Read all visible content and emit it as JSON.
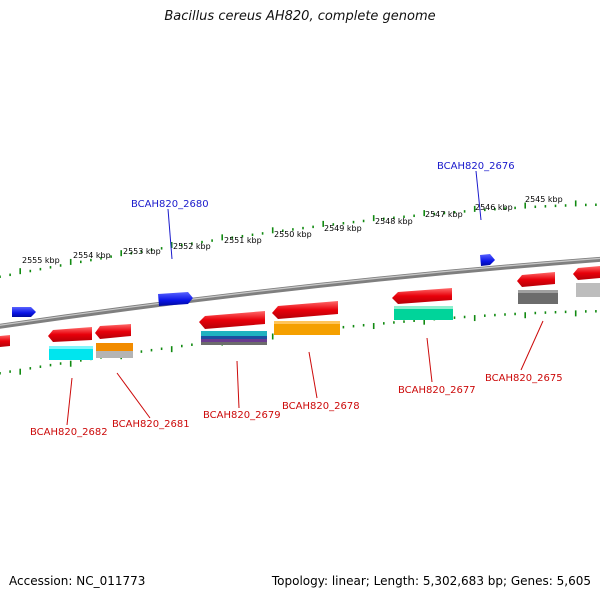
{
  "title": "Bacillus cereus AH820, complete genome",
  "footer": {
    "accession": "Accession: NC_011773",
    "summary": "Topology: linear; Length: 5,302,683 bp; Genes: 5,605"
  },
  "colors": {
    "backbone": "#7f7f7f",
    "tick": "#118a11",
    "forward_feature": "#0a14e6",
    "cds": "#e8000a",
    "label_top": "#1a1acc",
    "label_bottom": "#cc0a0a"
  },
  "scale_labels": [
    "2555 kbp",
    "2554 kbp",
    "2553 kbp",
    "2552 kbp",
    "2551 kbp",
    "2550 kbp",
    "2549 kbp",
    "2548 kbp",
    "2547 kbp",
    "2546 kbp",
    "2545 kbp"
  ],
  "gene_labels_top": [
    "BCAH820_2680",
    "BCAH820_2676"
  ],
  "gene_labels_bottom": [
    "BCAH820_2682",
    "BCAH820_2681",
    "BCAH820_2679",
    "BCAH820_2678",
    "BCAH820_2677",
    "BCAH820_2675"
  ]
}
